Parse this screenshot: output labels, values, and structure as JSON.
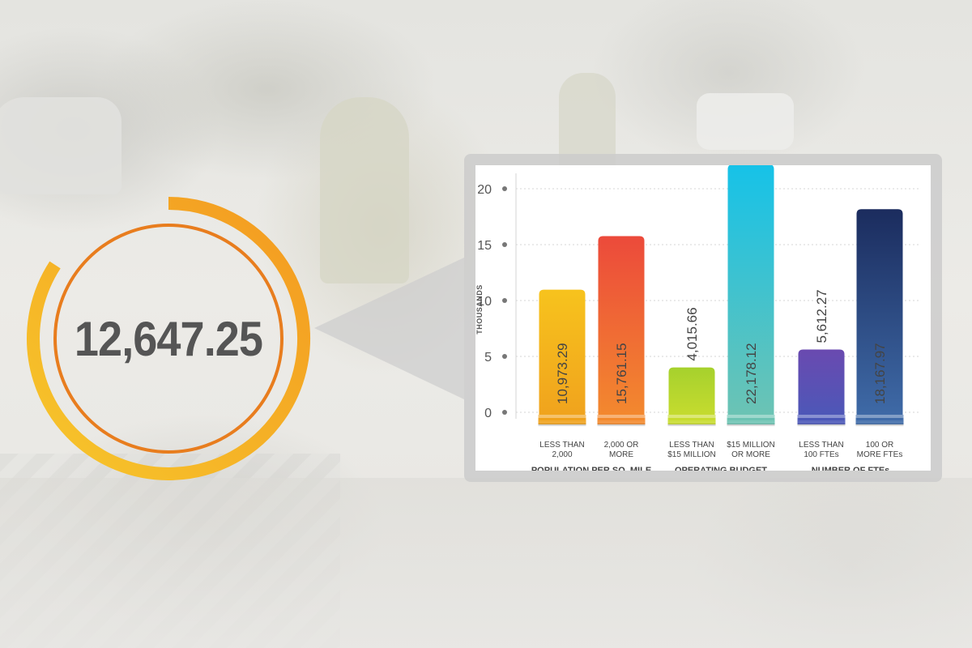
{
  "headline": {
    "value": "12,647.25",
    "ring_colors": [
      "#f7c62b",
      "#f39a21",
      "#e87d1e"
    ]
  },
  "chart_data": {
    "type": "bar",
    "ylabel": "THOUSANDS",
    "ylim": [
      0,
      22
    ],
    "yticks": [
      0,
      5,
      10,
      15,
      20
    ],
    "grid": true,
    "bars": [
      {
        "value": 10973.29,
        "label": "10,973.29",
        "category": "LESS THAN\n2,000",
        "group": "POPULATION PER SQ. MILE",
        "color_top": "#f7c31d",
        "color_bottom": "#f0a21d"
      },
      {
        "value": 15761.15,
        "label": "15,761.15",
        "category": "2,000 OR\nMORE",
        "group": "POPULATION PER SQ. MILE",
        "color_top": "#ec4a3b",
        "color_bottom": "#f38a2e"
      },
      {
        "value": 4015.66,
        "label": "4,015.66",
        "category": "LESS THAN\n$15 MILLION",
        "group": "OPERATING BUDGET",
        "color_top": "#a6d12d",
        "color_bottom": "#c8dc2f"
      },
      {
        "value": 22178.12,
        "label": "22,178.12",
        "category": "$15 MILLION\nOR MORE",
        "group": "OPERATING BUDGET",
        "color_top": "#16c2e8",
        "color_bottom": "#6dc3b3"
      },
      {
        "value": 5612.27,
        "label": "5,612.27",
        "category": "LESS THAN\n100 FTEs",
        "group": "NUMBER OF FTEs",
        "color_top": "#6a4ab0",
        "color_bottom": "#4b58b8"
      },
      {
        "value": 18167.97,
        "label": "18,167.97",
        "category": "100 OR\nMORE FTEs",
        "group": "NUMBER OF FTEs",
        "color_top": "#1b2c5e",
        "color_bottom": "#3f6ba8"
      }
    ],
    "groups": [
      "POPULATION PER SQ. MILE",
      "OPERATING BUDGET",
      "NUMBER OF FTEs"
    ]
  }
}
